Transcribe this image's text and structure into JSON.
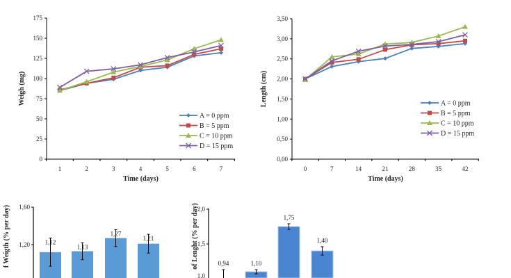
{
  "chart_data": [
    {
      "type": "line",
      "xlabel": "Time (days)",
      "ylabel": "Weigh (mg)",
      "x": [
        1,
        2,
        3,
        4,
        5,
        6,
        7
      ],
      "ylim": [
        0,
        175
      ],
      "yticks": [
        "0",
        "25",
        "50",
        "75",
        "100",
        "125",
        "150",
        "175"
      ],
      "ytick_values": [
        0,
        25,
        50,
        75,
        100,
        125,
        150,
        175
      ],
      "legend": "bottom-right",
      "grid": false,
      "series": [
        {
          "name": "A = 0 ppm",
          "color": "#4a7ebb",
          "marker": "diamond",
          "values": [
            85,
            94,
            99,
            110,
            114,
            128,
            132
          ]
        },
        {
          "name": "B = 5 ppm",
          "color": "#be4b48",
          "marker": "square",
          "values": [
            86,
            94,
            101,
            114,
            116,
            130,
            137
          ]
        },
        {
          "name": "C = 10 ppm",
          "color": "#98b954",
          "marker": "triangle",
          "values": [
            85,
            96,
            108,
            115,
            123,
            137,
            148
          ]
        },
        {
          "name": "D = 15 ppm",
          "color": "#7d60a0",
          "marker": "x",
          "values": [
            89,
            109,
            112,
            117,
            126,
            133,
            141
          ]
        }
      ]
    },
    {
      "type": "line",
      "xlabel": "Time (days)",
      "ylabel": "Length (cm)",
      "x": [
        0,
        7,
        14,
        21,
        28,
        35,
        42
      ],
      "ylim": [
        0,
        3.5
      ],
      "yticks": [
        "0,00",
        "0,50",
        "1,00",
        "1,50",
        "2,00",
        "2,50",
        "3,00",
        "3,50"
      ],
      "ytick_values": [
        0,
        0.5,
        1,
        1.5,
        2,
        2.5,
        3,
        3.5
      ],
      "legend": "bottom-right",
      "grid": false,
      "series": [
        {
          "name": "A = 0 ppm",
          "color": "#4a7ebb",
          "marker": "diamond",
          "values": [
            2.0,
            2.31,
            2.43,
            2.51,
            2.76,
            2.81,
            2.88
          ]
        },
        {
          "name": "B = 5 ppm",
          "color": "#be4b48",
          "marker": "square",
          "values": [
            2.0,
            2.41,
            2.49,
            2.73,
            2.85,
            2.88,
            2.95
          ]
        },
        {
          "name": "C = 10 ppm",
          "color": "#98b954",
          "marker": "triangle",
          "values": [
            1.98,
            2.55,
            2.62,
            2.87,
            2.91,
            3.07,
            3.3
          ]
        },
        {
          "name": "D = 15 ppm",
          "color": "#7d60a0",
          "marker": "x",
          "values": [
            2.0,
            2.45,
            2.69,
            2.82,
            2.86,
            2.93,
            3.1
          ]
        }
      ]
    },
    {
      "type": "bar",
      "ylabel": "f Weigth (% per day)",
      "yticks": [
        "1,20",
        "1,60"
      ],
      "ytick_values": [
        1.2,
        1.6
      ],
      "values": [
        1.12,
        1.13,
        1.27,
        1.21
      ],
      "errors": [
        0.15,
        0.09,
        0.09,
        0.1
      ],
      "data_labels": [
        "1,12",
        "1,13",
        "1,27",
        "1,21"
      ],
      "color": "#5b9bd5"
    },
    {
      "type": "bar",
      "ylabel": "of Lenght (% per day)",
      "yticks": [
        "1,0",
        "1,5",
        "2,0"
      ],
      "ytick_values": [
        1.0,
        1.5,
        2.0
      ],
      "values": [
        0.94,
        1.1,
        1.75,
        1.4
      ],
      "errors": [
        0.19,
        0.03,
        0.04,
        0.06
      ],
      "data_labels": [
        "0,94",
        "1,10",
        "1,75",
        "1,40"
      ],
      "color": "#4a86d0"
    }
  ]
}
